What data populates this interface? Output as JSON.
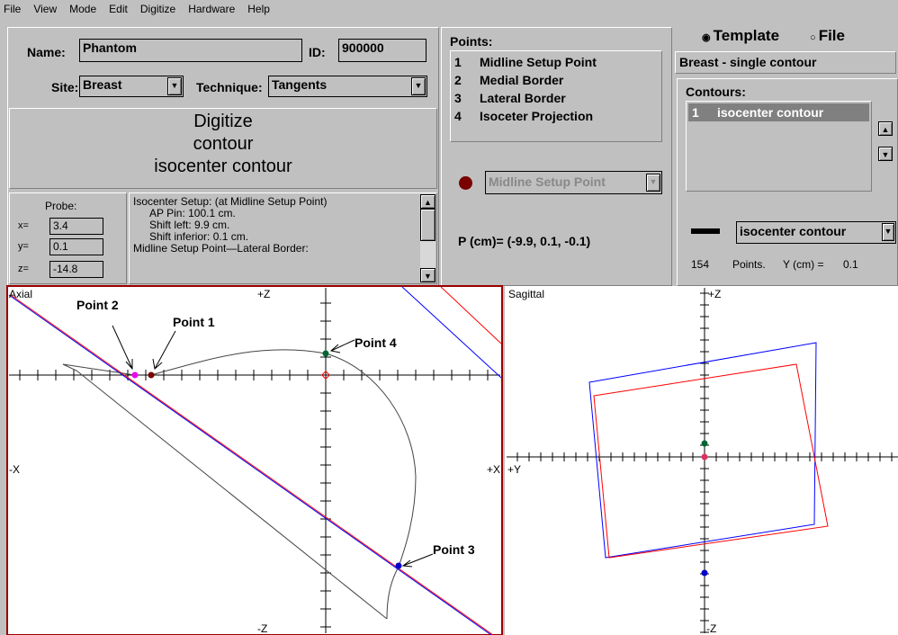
{
  "menu": [
    "File",
    "View",
    "Mode",
    "Edit",
    "Digitize",
    "Hardware",
    "Help"
  ],
  "patient": {
    "name_label": "Name:",
    "name": "Phantom",
    "id_label": "ID:",
    "id": "900000",
    "site_label": "Site:",
    "site": "Breast",
    "technique_label": "Technique:",
    "technique": "Tangents"
  },
  "status": [
    "Digitize",
    "contour",
    "isocenter contour"
  ],
  "probe": {
    "title": "Probe:",
    "x_label": "x=",
    "x": "3.4",
    "y_label": "y=",
    "y": "0.1",
    "z_label": "z=",
    "z": "-14.8"
  },
  "log": [
    "Isocenter Setup: (at Midline Setup Point)",
    "AP Pin: 100.1 cm.",
    "Shift left: 9.9 cm.",
    "Shift inferior: 0.1 cm.",
    "Midline Setup Point—Lateral Border:"
  ],
  "points": {
    "title": "Points:",
    "items": [
      {
        "num": "1",
        "label": "Midline Setup Point"
      },
      {
        "num": "2",
        "label": "Medial Border"
      },
      {
        "num": "3",
        "label": "Lateral Border"
      },
      {
        "num": "4",
        "label": "Isoceter Projection"
      }
    ],
    "selected": "Midline Setup Point",
    "position": "P (cm)= (-9.9, 0.1, -0.1)"
  },
  "source": {
    "template": "Template",
    "file": "File",
    "template_name": "Breast - single contour"
  },
  "contours": {
    "title": "Contours:",
    "items": [
      {
        "num": "1",
        "label": "isocenter contour"
      }
    ],
    "selected": "isocenter contour",
    "count": "154",
    "points_label": "Points.",
    "y_label": "Y (cm) =",
    "y": "0.1"
  },
  "axial": {
    "title": "Axial",
    "top": "+Z",
    "bottom": "-Z",
    "left": "-X",
    "right": "+X",
    "annotations": [
      "Point 1",
      "Point 2",
      "Point 3",
      "Point 4"
    ]
  },
  "sagittal": {
    "title": "Sagittal",
    "top": "+Z",
    "bottom": "-Z",
    "left": "+Y"
  }
}
